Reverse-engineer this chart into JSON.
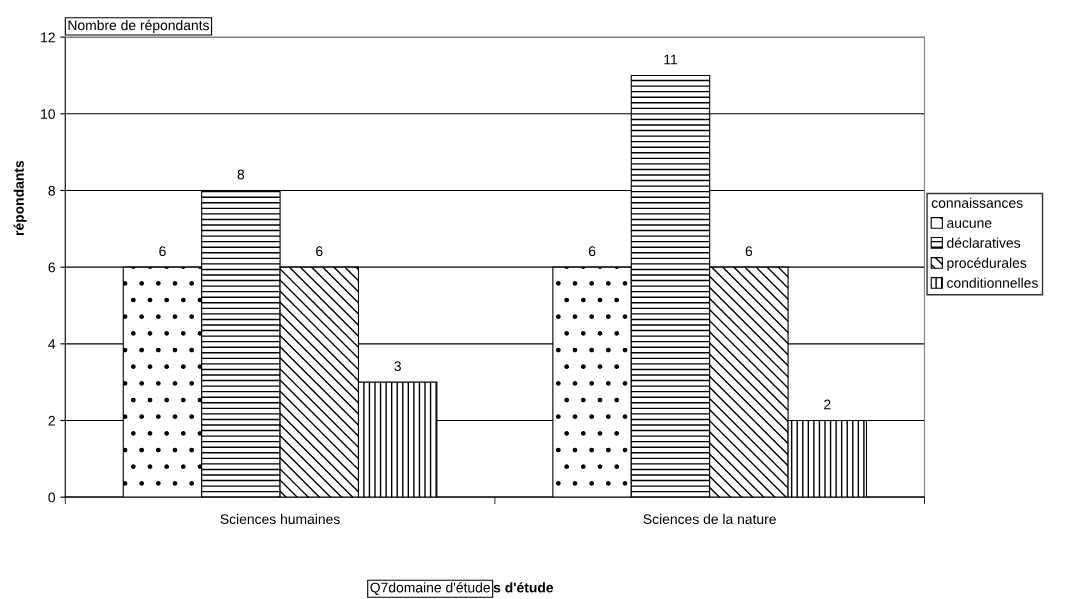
{
  "chart_data": {
    "type": "bar",
    "categories": [
      "Sciences humaines",
      "Sciences de la nature"
    ],
    "series": [
      {
        "name": "aucune",
        "color": "#000000",
        "values": [
          6,
          6
        ]
      },
      {
        "name": "déclaratives",
        "color": "#000000",
        "values": [
          8,
          11
        ]
      },
      {
        "name": "procédurales",
        "color": "#000000",
        "values": [
          6,
          6
        ]
      },
      {
        "name": "conditionnelles",
        "color": "#000000",
        "values": [
          3,
          2
        ]
      }
    ],
    "ylabel": "répondants",
    "xlabel": "s d'étude",
    "legend_title": "connaissances",
    "annotations": [
      "Nombre de répondants",
      "Q7domaine d'étude"
    ],
    "ylim": [
      0,
      12
    ],
    "yticks": [
      0,
      2,
      4,
      6,
      8,
      10,
      12
    ],
    "grid": "y",
    "legend": "right",
    "data_labels": true
  }
}
